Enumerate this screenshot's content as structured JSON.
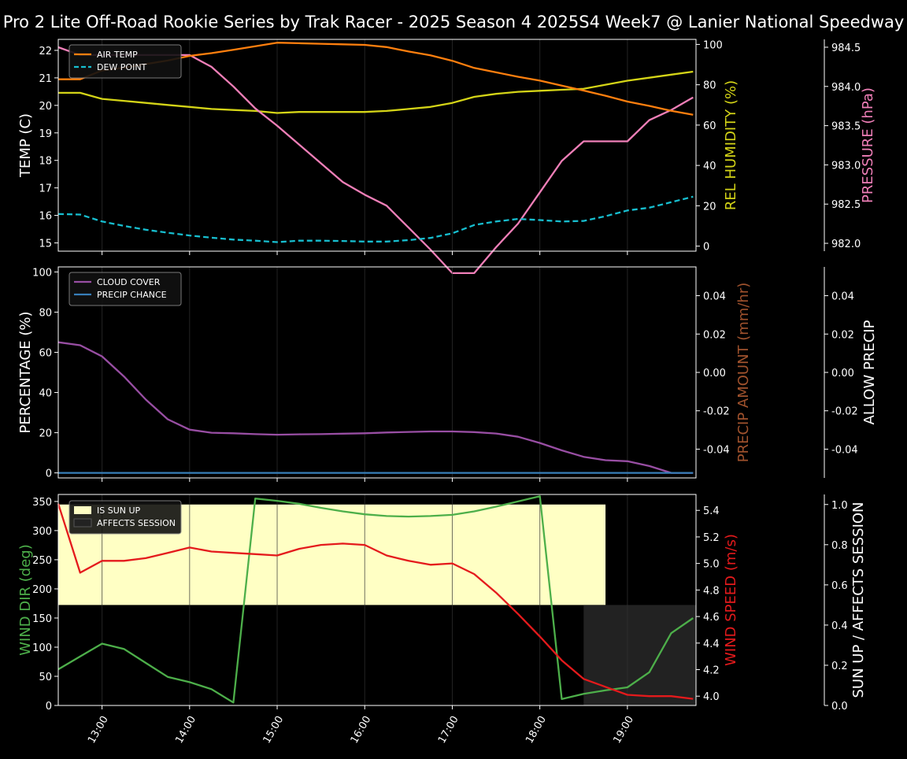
{
  "title": "Pro 2 Lite Off-Road Rookie Series by Trak Racer - 2025 Season 4 2025S4 Week7 @ Lanier National Speedway",
  "colors": {
    "background": "#000000",
    "axis": "#ffffff",
    "air_temp": "#ff7f0e",
    "dew_point": "#17becf",
    "rel_humidity": "#d4d417",
    "pressure": "#f07fb8",
    "cloud_cover": "#984ea3",
    "precip_chance": "#377eb8",
    "precip_amount_label": "#a0522d",
    "wind_dir": "#4daf4a",
    "wind_speed": "#e41a1c",
    "sun_up": "#ffffc4",
    "affects_session": "#222222"
  },
  "x_ticks": [
    "13:00",
    "14:00",
    "15:00",
    "16:00",
    "17:00",
    "18:00",
    "19:00"
  ],
  "chart_data": [
    {
      "type": "line",
      "panel": "temperature",
      "x": [
        "12:30",
        "12:45",
        "13:00",
        "13:15",
        "13:30",
        "13:45",
        "14:00",
        "14:15",
        "14:30",
        "14:45",
        "15:00",
        "15:15",
        "15:30",
        "15:45",
        "16:00",
        "16:15",
        "16:30",
        "16:45",
        "17:00",
        "17:15",
        "17:30",
        "17:45",
        "18:00",
        "18:15",
        "18:30",
        "18:45",
        "19:00",
        "19:15",
        "19:30",
        "19:45"
      ],
      "xlim": [
        "12:30",
        "19:47"
      ],
      "ylabel": "TEMP (C)",
      "ylim": [
        14.7,
        22.4
      ],
      "yticks": [
        15,
        16,
        17,
        18,
        19,
        20,
        21,
        22
      ],
      "legend": [
        "AIR TEMP",
        "DEW POINT"
      ],
      "legend_position": "top-left",
      "series": [
        {
          "name": "AIR TEMP",
          "axis": "temp",
          "style": "solid",
          "values": [
            20.95,
            20.95,
            21.27,
            21.37,
            21.5,
            21.63,
            21.8,
            21.9,
            22.02,
            22.15,
            22.28,
            22.26,
            22.24,
            22.22,
            22.2,
            22.12,
            21.96,
            21.82,
            21.62,
            21.36,
            21.2,
            21.04,
            20.9,
            20.72,
            20.54,
            20.35,
            20.14,
            19.98,
            19.8,
            19.66
          ]
        },
        {
          "name": "DEW POINT",
          "axis": "temp",
          "style": "dashed",
          "values": [
            16.05,
            16.03,
            15.78,
            15.62,
            15.48,
            15.37,
            15.27,
            15.19,
            15.12,
            15.08,
            15.03,
            15.08,
            15.08,
            15.07,
            15.05,
            15.05,
            15.1,
            15.18,
            15.35,
            15.65,
            15.78,
            15.87,
            15.83,
            15.78,
            15.8,
            15.97,
            16.18,
            16.28,
            16.48,
            16.68
          ]
        },
        {
          "name": "REL HUMIDITY",
          "axis": "humidity",
          "style": "solid",
          "values": [
            76,
            76,
            73,
            72,
            71,
            70,
            69,
            68,
            67.5,
            67,
            66,
            66.5,
            66.5,
            66.5,
            66.5,
            67,
            68,
            69,
            71,
            74,
            75.5,
            76.5,
            77,
            77.5,
            78,
            80,
            82,
            83.5,
            85,
            86.5
          ]
        },
        {
          "name": "PRESSURE",
          "axis": "pressure",
          "style": "solid",
          "values": [
            984.5,
            984.4,
            984.4,
            984.4,
            984.4,
            984.4,
            984.4,
            984.25,
            984.0,
            983.72,
            983.5,
            983.26,
            983.02,
            982.78,
            982.62,
            982.48,
            982.2,
            981.92,
            981.62,
            981.62,
            981.95,
            982.25,
            982.65,
            983.05,
            983.3,
            983.3,
            983.3,
            983.57,
            983.7,
            983.86
          ]
        }
      ],
      "right_axes": [
        {
          "key": "humidity",
          "label": "REL HUMIDITY (%)",
          "ylim": [
            -2.5,
            102.5
          ],
          "yticks": [
            0,
            20,
            40,
            60,
            80,
            100
          ]
        },
        {
          "key": "pressure",
          "label": "PRESSURE (hPa)",
          "ylim": [
            981.9,
            984.6
          ],
          "yticks": [
            982.0,
            982.5,
            983.0,
            983.5,
            984.0,
            984.5
          ]
        }
      ]
    },
    {
      "type": "line",
      "panel": "clouds",
      "x": [
        "12:30",
        "12:45",
        "13:00",
        "13:15",
        "13:30",
        "13:45",
        "14:00",
        "14:15",
        "14:30",
        "14:45",
        "15:00",
        "15:15",
        "15:30",
        "15:45",
        "16:00",
        "16:15",
        "16:30",
        "16:45",
        "17:00",
        "17:15",
        "17:30",
        "17:45",
        "18:00",
        "18:15",
        "18:30",
        "18:45",
        "19:00",
        "19:15",
        "19:30",
        "19:45"
      ],
      "ylabel": "PERCENTAGE (%)",
      "ylim": [
        -2.5,
        102.5
      ],
      "yticks": [
        0,
        20,
        40,
        60,
        80,
        100
      ],
      "legend": [
        "CLOUD COVER",
        "PRECIP CHANCE"
      ],
      "legend_position": "top-left",
      "series": [
        {
          "name": "CLOUD COVER",
          "values": [
            65,
            63.5,
            58,
            48,
            36.5,
            26.7,
            21.5,
            20,
            19.7,
            19.3,
            19,
            19.2,
            19.3,
            19.5,
            19.7,
            20.1,
            20.4,
            20.6,
            20.6,
            20.3,
            19.6,
            18,
            14.9,
            11.2,
            8,
            6.3,
            5.8,
            3.4,
            0,
            0
          ]
        },
        {
          "name": "PRECIP CHANCE",
          "values": [
            0,
            0,
            0,
            0,
            0,
            0,
            0,
            0,
            0,
            0,
            0,
            0,
            0,
            0,
            0,
            0,
            0,
            0,
            0,
            0,
            0,
            0,
            0,
            0,
            0,
            0,
            0,
            0,
            0,
            0
          ]
        },
        {
          "name": "PRECIP AMOUNT",
          "values": [
            0,
            0,
            0,
            0,
            0,
            0,
            0,
            0,
            0,
            0,
            0,
            0,
            0,
            0,
            0,
            0,
            0,
            0,
            0,
            0,
            0,
            0,
            0,
            0,
            0,
            0,
            0,
            0,
            0,
            0
          ]
        }
      ],
      "right_axes": [
        {
          "key": "precip",
          "label": "PRECIP AMOUNT (mm/hr)",
          "ylim": [
            -0.055,
            0.055
          ],
          "yticks": [
            -0.04,
            -0.02,
            0.0,
            0.02,
            0.04
          ]
        },
        {
          "key": "allow",
          "label": "ALLOW PRECIP",
          "ylim": [
            -0.055,
            0.055
          ],
          "yticks": [
            -0.04,
            -0.02,
            0.0,
            0.02,
            0.04
          ]
        }
      ]
    },
    {
      "type": "line",
      "panel": "wind",
      "x": [
        "12:30",
        "12:45",
        "13:00",
        "13:15",
        "13:30",
        "13:45",
        "14:00",
        "14:15",
        "14:30",
        "14:45",
        "15:00",
        "15:15",
        "15:30",
        "15:45",
        "16:00",
        "16:15",
        "16:30",
        "16:45",
        "17:00",
        "17:15",
        "17:30",
        "17:45",
        "18:00",
        "18:15",
        "18:30",
        "18:45",
        "19:00",
        "19:15",
        "19:30",
        "19:45"
      ],
      "ylabel": "WIND DIR (deg)",
      "ylim": [
        0,
        362
      ],
      "yticks": [
        0,
        50,
        100,
        150,
        200,
        250,
        300,
        350
      ],
      "legend": [
        "IS SUN UP",
        "AFFECTS SESSION"
      ],
      "legend_position": "top-left",
      "series": [
        {
          "name": "WIND DIR",
          "axis": "dir",
          "values": [
            62,
            84,
            106,
            97,
            73,
            49,
            40,
            28,
            5,
            355,
            351,
            346,
            339,
            333,
            328,
            325,
            324,
            325,
            327,
            333,
            341,
            350,
            359,
            11,
            20,
            26,
            31,
            57,
            124,
            150
          ]
        },
        {
          "name": "WIND SPEED",
          "axis": "speed",
          "values": [
            5.45,
            4.93,
            5.02,
            5.02,
            5.04,
            5.08,
            5.12,
            5.09,
            5.08,
            5.07,
            5.06,
            5.11,
            5.14,
            5.15,
            5.14,
            5.06,
            5.02,
            4.99,
            5.0,
            4.92,
            4.78,
            4.62,
            4.45,
            4.27,
            4.13,
            4.07,
            4.01,
            4.0,
            4.0,
            3.98
          ]
        },
        {
          "name": "IS SUN UP",
          "axis": "bool",
          "type": "area",
          "from": "12:30",
          "to": "18:45",
          "value": 1
        },
        {
          "name": "AFFECTS SESSION",
          "axis": "bool",
          "type": "area",
          "from": "18:30",
          "to": "19:47",
          "value": 1
        }
      ],
      "right_axes": [
        {
          "key": "speed",
          "label": "WIND SPEED (m/s)",
          "ylim": [
            3.93,
            5.52
          ],
          "yticks": [
            4.0,
            4.2,
            4.4,
            4.6,
            4.8,
            5.0,
            5.2,
            5.4
          ]
        },
        {
          "key": "bool",
          "label": "SUN UP / AFFECTS SESSION",
          "ylim": [
            0,
            1.05
          ],
          "yticks": [
            0.0,
            0.2,
            0.4,
            0.6,
            0.8,
            1.0
          ]
        }
      ]
    }
  ]
}
